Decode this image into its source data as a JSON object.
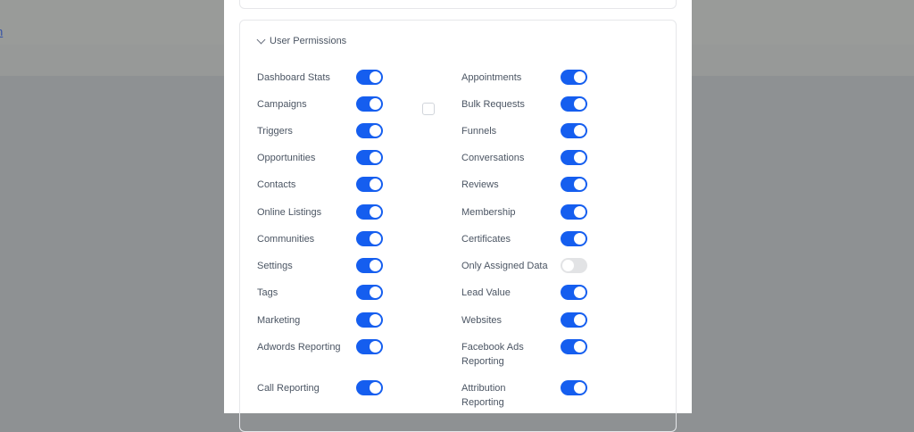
{
  "background": {
    "link_text": "n"
  },
  "section": {
    "title": "User Permissions"
  },
  "permissions_left": [
    {
      "label": "Dashboard Stats",
      "enabled": true
    },
    {
      "label": "Campaigns",
      "enabled": true
    },
    {
      "label": "Triggers",
      "enabled": true
    },
    {
      "label": "Opportunities",
      "enabled": true
    },
    {
      "label": "Contacts",
      "enabled": true
    },
    {
      "label": "Online Listings",
      "enabled": true
    },
    {
      "label": "Communities",
      "enabled": true
    },
    {
      "label": "Settings",
      "enabled": true
    },
    {
      "label": "Tags",
      "enabled": true
    },
    {
      "label": "Marketing",
      "enabled": true
    },
    {
      "label": "Adwords Reporting",
      "enabled": true
    },
    {
      "label": "Call Reporting",
      "enabled": true
    }
  ],
  "permissions_right": [
    {
      "label": "Appointments",
      "enabled": true
    },
    {
      "label": "Bulk Requests",
      "enabled": true
    },
    {
      "label": "Funnels",
      "enabled": true
    },
    {
      "label": "Conversations",
      "enabled": true
    },
    {
      "label": "Reviews",
      "enabled": true
    },
    {
      "label": "Membership",
      "enabled": true
    },
    {
      "label": "Certificates",
      "enabled": true
    },
    {
      "label": "Only Assigned Data",
      "enabled": false
    },
    {
      "label": "Lead Value",
      "enabled": true
    },
    {
      "label": "Websites",
      "enabled": true
    },
    {
      "label": "Facebook Ads Reporting",
      "enabled": true
    },
    {
      "label": "Attribution Reporting",
      "enabled": true
    }
  ],
  "colors": {
    "toggle_on": "#155eef",
    "toggle_off": "#e2e3e5"
  }
}
